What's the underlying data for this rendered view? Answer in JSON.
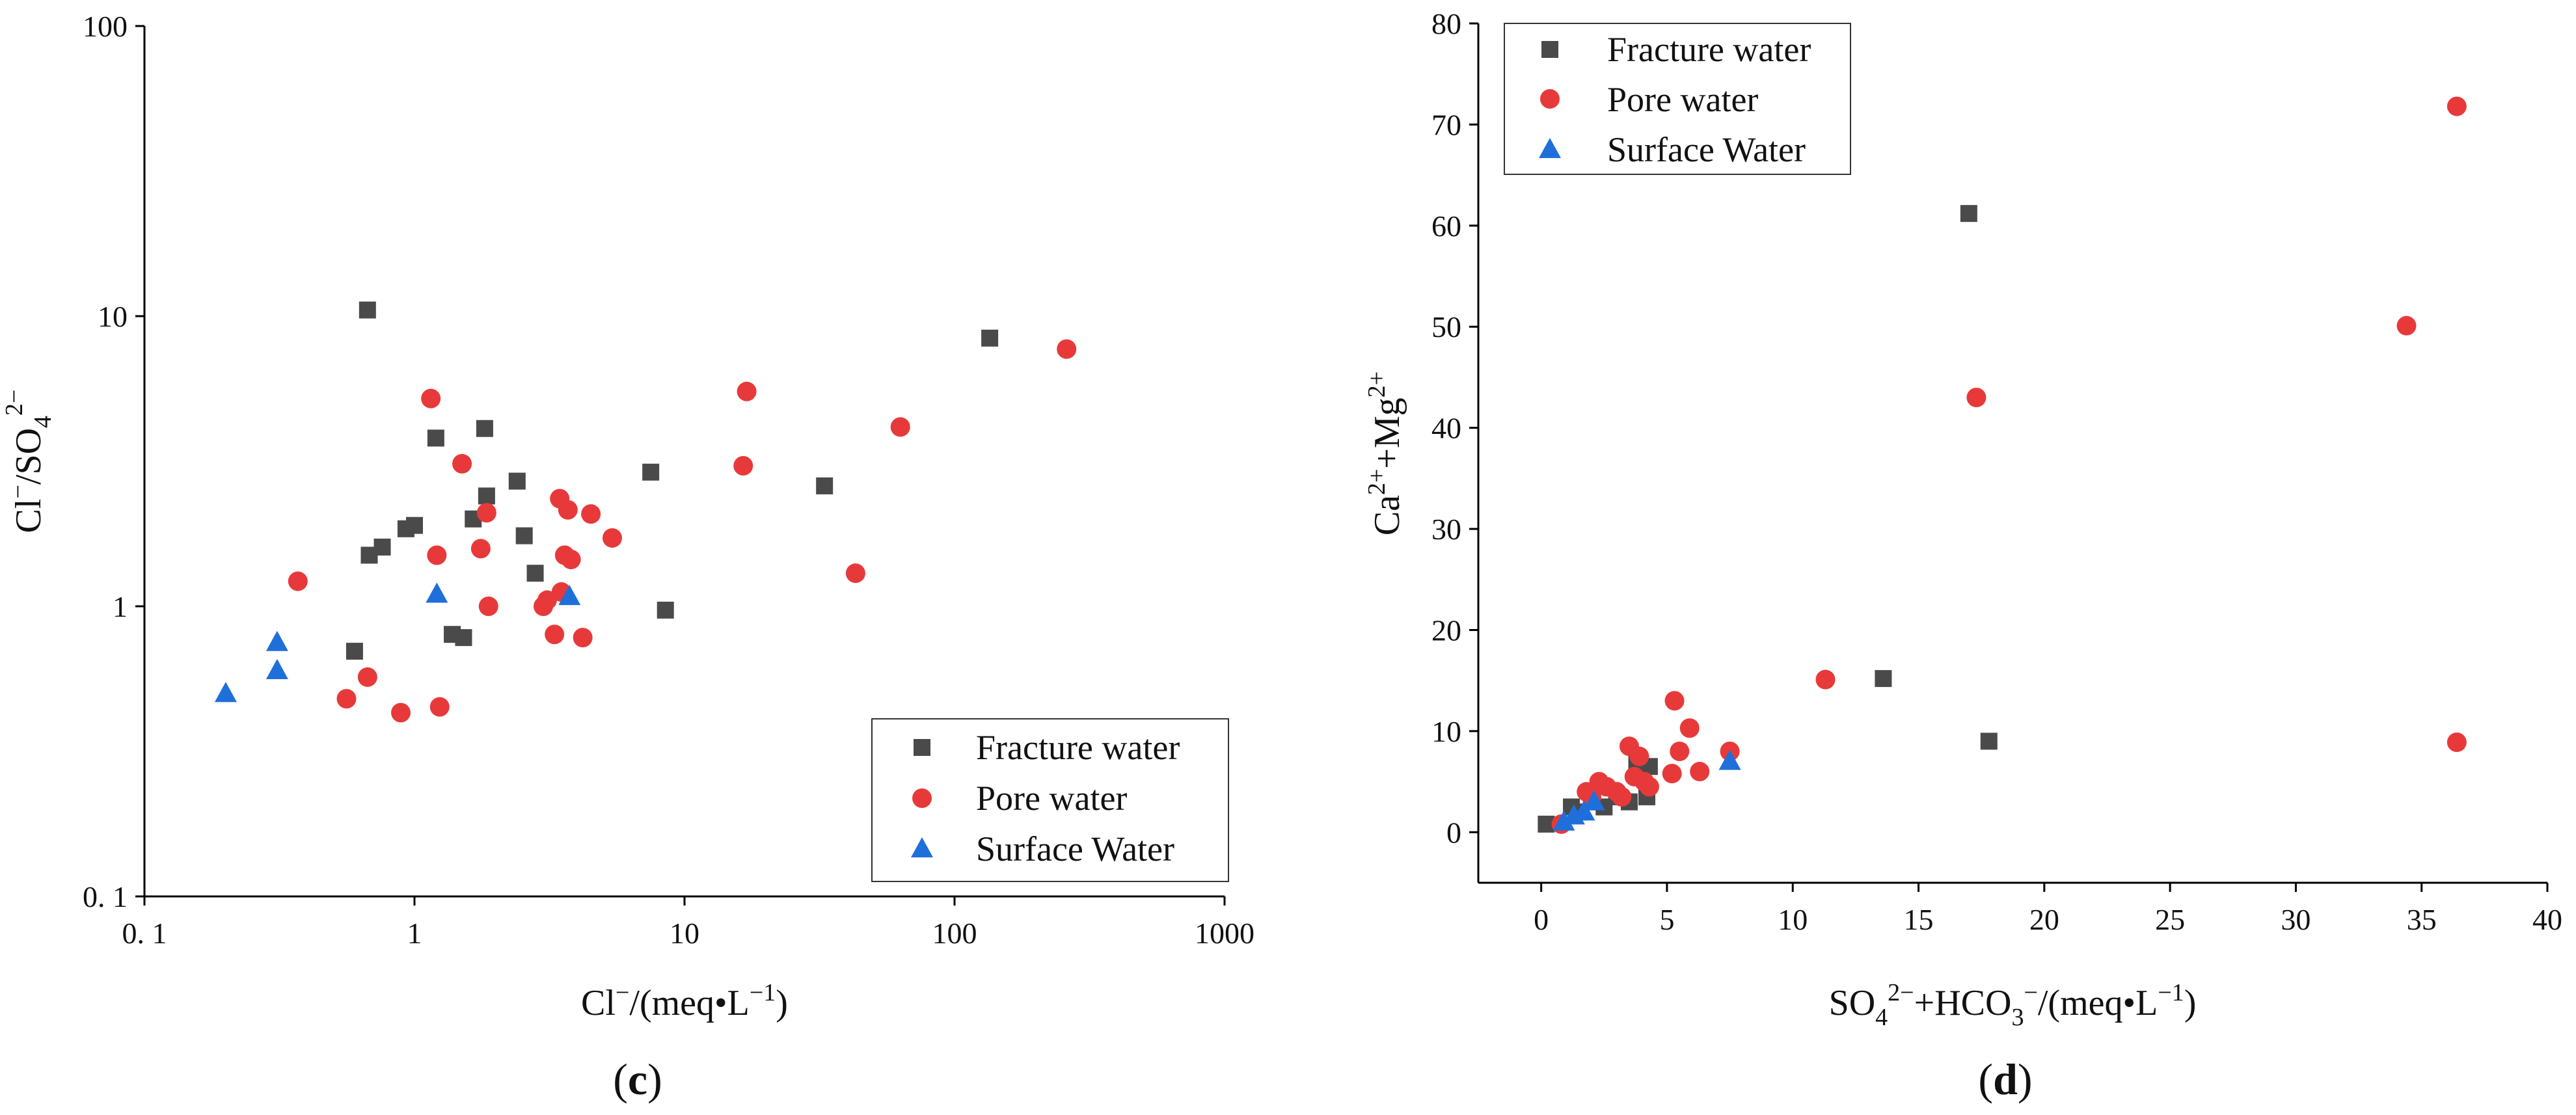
{
  "chart_data": [
    {
      "type": "scatter",
      "panel_label": "c",
      "xscale": "log",
      "yscale": "log",
      "xlim": [
        0.1,
        1000
      ],
      "ylim": [
        0.1,
        100
      ],
      "x_ticks": [
        0.1,
        1,
        10,
        100,
        1000
      ],
      "x_tick_labels": [
        "0. 1",
        "1",
        "10",
        "100",
        "1000"
      ],
      "y_ticks": [
        0.1,
        1,
        10,
        100
      ],
      "y_tick_labels": [
        "0. 1",
        "1",
        "10",
        "100"
      ],
      "xlabel": {
        "main": "Cl",
        "sup": "−",
        "rest": "/(meq•L",
        "sup2": "−1",
        "end": ")"
      },
      "ylabel": {
        "main": "Cl",
        "sup": "−",
        "mid": "/SO",
        "sub": "4",
        "sup2": "2−"
      },
      "legend_position": "bottom-right",
      "series": [
        {
          "name": "Fracture water",
          "marker": "square",
          "color": "#4a4a4a",
          "x": [
            0.67,
            0.6,
            0.68,
            0.76,
            0.93,
            1.0,
            1.2,
            1.38,
            1.52,
            1.65,
            1.82,
            1.85,
            2.4,
            2.55,
            2.8,
            7.5,
            8.5,
            33,
            135
          ],
          "y": [
            10.5,
            0.7,
            1.5,
            1.6,
            1.85,
            1.9,
            3.8,
            0.8,
            0.78,
            2.0,
            4.1,
            2.4,
            2.7,
            1.75,
            1.3,
            2.9,
            0.97,
            2.6,
            8.4
          ]
        },
        {
          "name": "Pore water",
          "marker": "circle",
          "color": "#e8393a",
          "x": [
            0.37,
            0.56,
            0.67,
            0.89,
            1.15,
            1.21,
            1.24,
            1.5,
            1.76,
            1.85,
            1.88,
            3.0,
            3.1,
            3.3,
            3.45,
            3.5,
            3.6,
            3.7,
            3.8,
            4.2,
            4.5,
            5.4,
            16.5,
            17,
            43,
            63,
            260
          ],
          "y": [
            1.22,
            0.48,
            0.57,
            0.43,
            5.2,
            1.5,
            0.45,
            3.1,
            1.58,
            2.1,
            1.0,
            1.0,
            1.05,
            0.8,
            2.35,
            1.12,
            1.5,
            2.15,
            1.45,
            0.78,
            2.08,
            1.72,
            3.05,
            5.5,
            1.3,
            4.15,
            7.7
          ]
        },
        {
          "name": "Surface Water",
          "marker": "triangle",
          "color": "#1f6fdb",
          "x": [
            0.2,
            0.31,
            0.31,
            1.21,
            3.75
          ],
          "y": [
            0.5,
            0.75,
            0.6,
            1.1,
            1.08
          ]
        }
      ]
    },
    {
      "type": "scatter",
      "panel_label": "d",
      "xscale": "linear",
      "yscale": "linear",
      "xlim": [
        -2.5,
        40
      ],
      "ylim": [
        -5,
        80
      ],
      "x_ticks": [
        0,
        5,
        10,
        15,
        20,
        25,
        30,
        35,
        40
      ],
      "x_tick_labels": [
        "0",
        "5",
        "10",
        "15",
        "20",
        "25",
        "30",
        "35",
        "40"
      ],
      "y_ticks": [
        0,
        10,
        20,
        30,
        40,
        50,
        60,
        70,
        80
      ],
      "y_tick_labels": [
        "0",
        "10",
        "20",
        "30",
        "40",
        "50",
        "60",
        "70",
        "80"
      ],
      "xlabel": {
        "main": "SO",
        "sub": "4",
        "sup": "2−",
        "mid": "+HCO",
        "sub2": "3",
        "sup2": "−",
        "rest": "/(meq•L",
        "sup3": "−1",
        "end": ")"
      },
      "ylabel": {
        "main": "Ca",
        "sup": "2+",
        "mid": "+Mg",
        "sup2": "2+"
      },
      "legend_position": "top-left",
      "series": [
        {
          "name": "Fracture water",
          "marker": "square",
          "color": "#4a4a4a",
          "x": [
            0.2,
            1.2,
            1.5,
            2.0,
            2.5,
            3.0,
            3.5,
            3.8,
            4.2,
            4.3,
            13.6,
            17.0,
            17.8
          ],
          "y": [
            0.8,
            2.5,
            2.0,
            3.0,
            2.5,
            3.5,
            3.0,
            6.8,
            3.5,
            6.5,
            15.2,
            61.2,
            9.0
          ]
        },
        {
          "name": "Pore water",
          "marker": "circle",
          "color": "#e8393a",
          "x": [
            0.8,
            1.8,
            2.0,
            2.3,
            2.6,
            3.0,
            3.2,
            3.5,
            3.7,
            3.9,
            4.1,
            4.3,
            5.2,
            5.3,
            5.5,
            5.9,
            6.3,
            7.5,
            11.3,
            17.3,
            34.4,
            36.4,
            36.4
          ],
          "y": [
            0.8,
            4.0,
            3.5,
            5.0,
            4.5,
            4.0,
            3.5,
            8.5,
            5.5,
            7.5,
            5.0,
            4.5,
            5.8,
            13.0,
            8.0,
            10.3,
            6.0,
            8.0,
            15.1,
            43.0,
            50.1,
            71.8,
            8.9
          ]
        },
        {
          "name": "Surface Water",
          "marker": "triangle",
          "color": "#1f6fdb",
          "x": [
            0.9,
            1.3,
            1.7,
            2.1,
            7.5
          ],
          "y": [
            1.0,
            1.6,
            2.0,
            3.0,
            7.0
          ]
        }
      ]
    }
  ]
}
